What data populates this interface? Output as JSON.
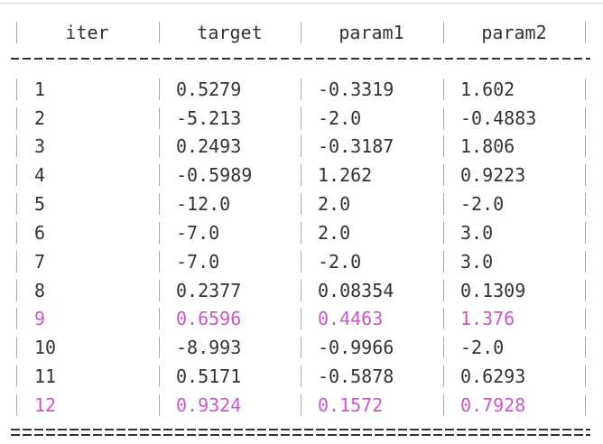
{
  "table": {
    "header": [
      "iter",
      "target",
      "param1",
      "param2"
    ],
    "rows": [
      [
        "1",
        "0.5279",
        "-0.3319",
        "1.602"
      ],
      [
        "2",
        "-5.213",
        "-2.0",
        "-0.4883"
      ],
      [
        "3",
        "0.2493",
        "-0.3187",
        "1.806"
      ],
      [
        "4",
        "-0.5989",
        "1.262",
        "0.9223"
      ],
      [
        "5",
        "-12.0",
        "2.0",
        "-2.0"
      ],
      [
        "6",
        "-7.0",
        "2.0",
        "3.0"
      ],
      [
        "7",
        "-7.0",
        "-2.0",
        "3.0"
      ],
      [
        "8",
        "0.2377",
        "0.08354",
        "0.1309"
      ],
      [
        "9",
        "0.6596",
        "0.4463",
        "1.376"
      ],
      [
        "10",
        "-8.993",
        "-0.9966",
        "-2.0"
      ],
      [
        "11",
        "0.5171",
        "-0.5878",
        "0.6293"
      ],
      [
        "12",
        "0.9324",
        "0.1572",
        "0.7928"
      ]
    ]
  }
}
